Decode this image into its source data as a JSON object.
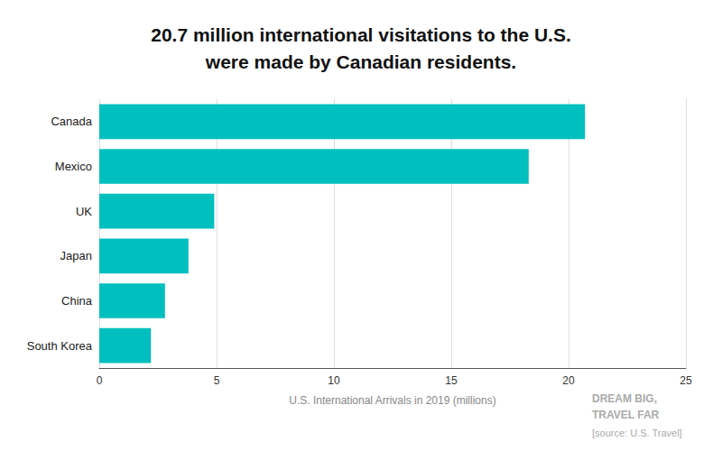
{
  "chart_data": {
    "type": "bar",
    "orientation": "horizontal",
    "title": "20.7 million international visitations to the U.S.\nwere made by Canadian residents.",
    "x_label": "U.S. International Arrivals in 2019 (millions)",
    "categories": [
      "Canada",
      "Mexico",
      "UK",
      "Japan",
      "China",
      "South Korea"
    ],
    "values": [
      20.7,
      18.3,
      4.9,
      3.8,
      2.8,
      2.2
    ],
    "color": "#00BFBF",
    "xlim": [
      0,
      25
    ],
    "xticks": [
      0,
      5,
      10,
      15,
      20,
      25
    ],
    "grid": true,
    "annotations": [
      "DREAM BIG,",
      "TRAVEL FAR",
      "[source: U.S. Travel]"
    ]
  }
}
